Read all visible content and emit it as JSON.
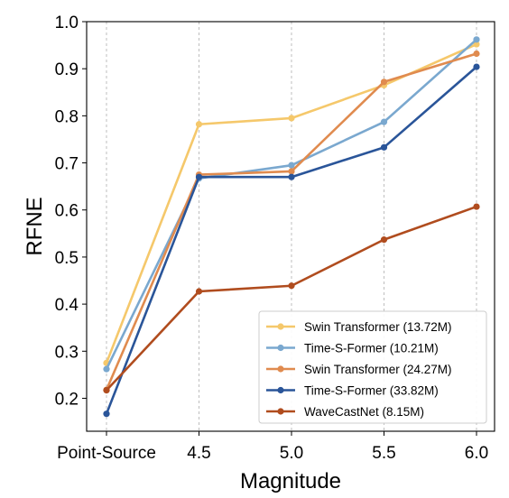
{
  "chart_data": {
    "type": "line",
    "title": "",
    "xlabel": "Magnitude",
    "ylabel": "RFNE",
    "categories": [
      "Point-Source",
      "4.5",
      "5.0",
      "5.5",
      "6.0"
    ],
    "ylim": [
      0.13,
      1.0
    ],
    "yticks": [
      "0.2",
      "0.3",
      "0.4",
      "0.5",
      "0.6",
      "0.7",
      "0.8",
      "0.9",
      "1.0"
    ],
    "grid": "vertical-dashed",
    "legend_position": "lower-right",
    "series": [
      {
        "name": "Swin Transformer (13.72M)",
        "color": "#f5c86b",
        "values": [
          0.275,
          0.782,
          0.795,
          0.865,
          0.952
        ]
      },
      {
        "name": "Time-S-Former (10.21M)",
        "color": "#7aa8cf",
        "values": [
          0.262,
          0.667,
          0.695,
          0.787,
          0.962
        ]
      },
      {
        "name": "Swin Transformer (24.27M)",
        "color": "#e08b4f",
        "values": [
          0.218,
          0.675,
          0.682,
          0.872,
          0.932
        ]
      },
      {
        "name": "Time-S-Former (33.82M)",
        "color": "#2a5599",
        "values": [
          0.167,
          0.67,
          0.67,
          0.733,
          0.904
        ]
      },
      {
        "name": "WaveCastNet (8.15M)",
        "color": "#b04c1e",
        "values": [
          0.217,
          0.427,
          0.439,
          0.537,
          0.607
        ]
      }
    ]
  }
}
